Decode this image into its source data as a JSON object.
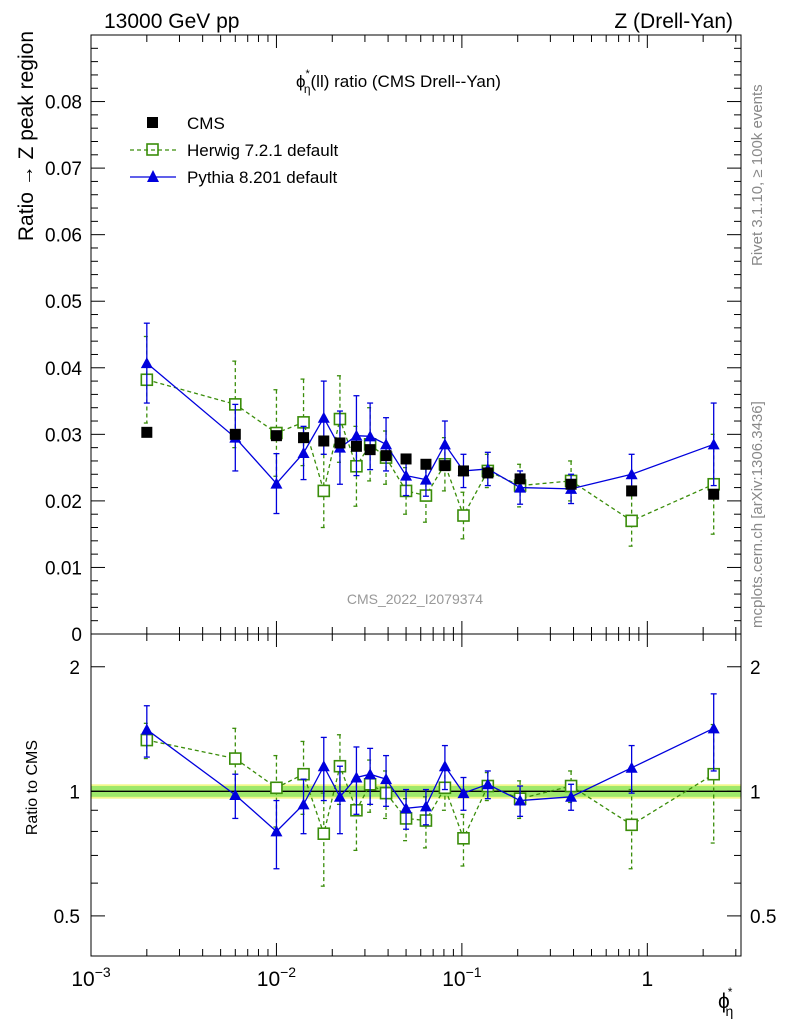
{
  "header": {
    "left": "13000 GeV pp",
    "right": "Z (Drell-Yan)"
  },
  "side": {
    "rivet": "Rivet 3.1.10, ≥ 100k events",
    "mcplots": "mcplots.cern.ch [arXiv:1306.3436]"
  },
  "chart_data": {
    "type": "scatter",
    "title": "ϕ*η(ll) ratio (CMS Drell--Yan)",
    "title_parts": {
      "phi": "ϕ",
      "sup": "*",
      "sub": "η",
      "rest": "(ll) ratio (CMS Drell--Yan)"
    },
    "watermark": "CMS_2022_I2079374",
    "xlabel": {
      "phi": "ϕ",
      "sup": "*",
      "sub": "η"
    },
    "xscale": "log",
    "xlim": [
      0.001,
      3.2
    ],
    "xticks": [
      {
        "v": 0.001,
        "base": "10",
        "exp": "−3"
      },
      {
        "v": 0.01,
        "base": "10",
        "exp": "−2"
      },
      {
        "v": 0.1,
        "base": "10",
        "exp": "−1"
      },
      {
        "v": 1,
        "base": "1",
        "exp": ""
      }
    ],
    "top": {
      "ylabel": "Ratio → Z peak region",
      "ylim": [
        0,
        0.09
      ],
      "yticks": [
        {
          "v": 0,
          "label": "0"
        },
        {
          "v": 0.01,
          "label": "0.01"
        },
        {
          "v": 0.02,
          "label": "0.02"
        },
        {
          "v": 0.03,
          "label": "0.03"
        },
        {
          "v": 0.04,
          "label": "0.04"
        },
        {
          "v": 0.05,
          "label": "0.05"
        },
        {
          "v": 0.06,
          "label": "0.06"
        },
        {
          "v": 0.07,
          "label": "0.07"
        },
        {
          "v": 0.08,
          "label": "0.08"
        }
      ],
      "legend": [
        "CMS",
        "Herwig 7.2.1 default",
        "Pythia 8.201 default"
      ],
      "legend_position": "top-left"
    },
    "ratio": {
      "ylabel": "Ratio to CMS",
      "ylim": [
        0.4,
        2.4
      ],
      "yscale": "log",
      "yticks": [
        {
          "v": 0.5,
          "label": "0.5"
        },
        {
          "v": 1,
          "label": "1"
        },
        {
          "v": 2,
          "label": "2"
        }
      ],
      "band": [
        0.97,
        1.03
      ]
    },
    "x": [
      0.002,
      0.006,
      0.01,
      0.014,
      0.018,
      0.022,
      0.027,
      0.032,
      0.039,
      0.05,
      0.064,
      0.081,
      0.102,
      0.138,
      0.206,
      0.388,
      0.823,
      2.28
    ],
    "series": [
      {
        "name": "CMS",
        "color": "#000000",
        "marker": "filled-square",
        "y": [
          0.0303,
          0.03,
          0.0298,
          0.0295,
          0.029,
          0.0287,
          0.0282,
          0.0277,
          0.0268,
          0.0263,
          0.0255,
          0.0253,
          0.0245,
          0.0242,
          0.0233,
          0.0225,
          0.0215,
          0.021
        ]
      },
      {
        "name": "Herwig 7.2.1 default",
        "color": "#3a8d0a",
        "marker": "open-square",
        "line": "dashed",
        "y": [
          0.0382,
          0.0345,
          0.0302,
          0.0318,
          0.0215,
          0.0323,
          0.0252,
          0.0285,
          0.0265,
          0.0215,
          0.0208,
          0.0255,
          0.0178,
          0.0245,
          0.0223,
          0.023,
          0.017,
          0.0225
        ],
        "err": [
          0.0065,
          0.0065,
          0.0065,
          0.0065,
          0.0055,
          0.0065,
          0.006,
          0.0055,
          0.004,
          0.0035,
          0.004,
          0.004,
          0.0035,
          0.0025,
          0.0032,
          0.003,
          0.0038,
          0.0075
        ],
        "ratio": [
          1.33,
          1.2,
          1.02,
          1.1,
          0.79,
          1.15,
          0.9,
          1.04,
          0.99,
          0.86,
          0.85,
          1.02,
          0.77,
          1.03,
          0.96,
          1.03,
          0.83,
          1.1
        ],
        "ratio_err": [
          0.13,
          0.22,
          0.2,
          0.22,
          0.2,
          0.22,
          0.18,
          0.15,
          0.13,
          0.1,
          0.12,
          0.12,
          0.11,
          0.08,
          0.1,
          0.09,
          0.18,
          0.35
        ]
      },
      {
        "name": "Pythia 8.201 default",
        "color": "#0000dd",
        "marker": "filled-triangle",
        "line": "solid",
        "y": [
          0.0407,
          0.0295,
          0.0226,
          0.0272,
          0.0325,
          0.028,
          0.0298,
          0.0297,
          0.0285,
          0.0238,
          0.0232,
          0.0285,
          0.0245,
          0.0248,
          0.022,
          0.0218,
          0.024,
          0.0285
        ],
        "err": [
          0.006,
          0.005,
          0.0045,
          0.004,
          0.0055,
          0.0055,
          0.006,
          0.005,
          0.004,
          0.003,
          0.0025,
          0.0035,
          0.0025,
          0.0025,
          0.0025,
          0.0022,
          0.003,
          0.0062
        ],
        "ratio": [
          1.41,
          0.98,
          0.8,
          0.93,
          1.15,
          0.97,
          1.08,
          1.1,
          1.07,
          0.91,
          0.92,
          1.15,
          0.99,
          1.04,
          0.95,
          0.97,
          1.14,
          1.42
        ],
        "ratio_err": [
          0.2,
          0.12,
          0.15,
          0.14,
          0.2,
          0.18,
          0.2,
          0.17,
          0.15,
          0.1,
          0.09,
          0.14,
          0.09,
          0.08,
          0.08,
          0.07,
          0.15,
          0.3
        ]
      }
    ]
  }
}
